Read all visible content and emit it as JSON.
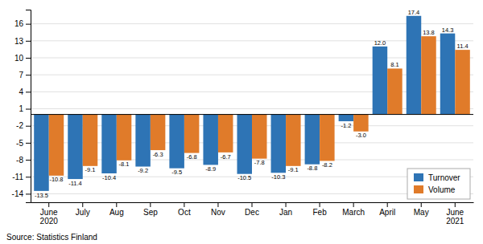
{
  "chart_data": {
    "type": "bar",
    "categories": [
      "June\n2020",
      "July",
      "Aug",
      "Sep",
      "Oct",
      "Nov",
      "Dec",
      "Jan",
      "Feb",
      "March",
      "April",
      "May",
      "June\n2021"
    ],
    "series": [
      {
        "name": "Turnover",
        "color": "#2E74B5",
        "values": [
          -13.5,
          -11.4,
          -10.4,
          -9.2,
          -9.5,
          -8.9,
          -10.5,
          -10.3,
          -8.8,
          -1.2,
          12.0,
          17.4,
          14.3
        ],
        "value_labels": [
          "-13.5",
          "-11.4",
          "-10.4",
          "-9.2",
          "-9.5",
          "-8.9",
          "-10.5",
          "-10.3",
          "-8.8",
          "-1.2",
          "12.0",
          "17.4",
          "14.3"
        ]
      },
      {
        "name": "Volume",
        "color": "#E07B2A",
        "values": [
          -10.8,
          -9.1,
          -8.1,
          -6.3,
          -6.8,
          -6.7,
          -7.8,
          -9.1,
          -8.2,
          -3.0,
          8.1,
          13.8,
          11.4
        ],
        "value_labels": [
          "-10.8",
          "-9.1",
          "-8.1",
          "-6.3",
          "-6.8",
          "-6.7",
          "-7.8",
          "-9.1",
          "-8.2",
          "-3.0",
          "8.1",
          "13.8",
          "11.4"
        ]
      }
    ],
    "ylim": [
      -15.5,
      18.5
    ],
    "yticks": [
      -14,
      -11,
      -8,
      -5,
      -2,
      1,
      4,
      7,
      10,
      13,
      16
    ],
    "grid": true,
    "legend": "lower right",
    "data_labels": true,
    "annotations": [
      "Source: Statistics Finland"
    ]
  }
}
